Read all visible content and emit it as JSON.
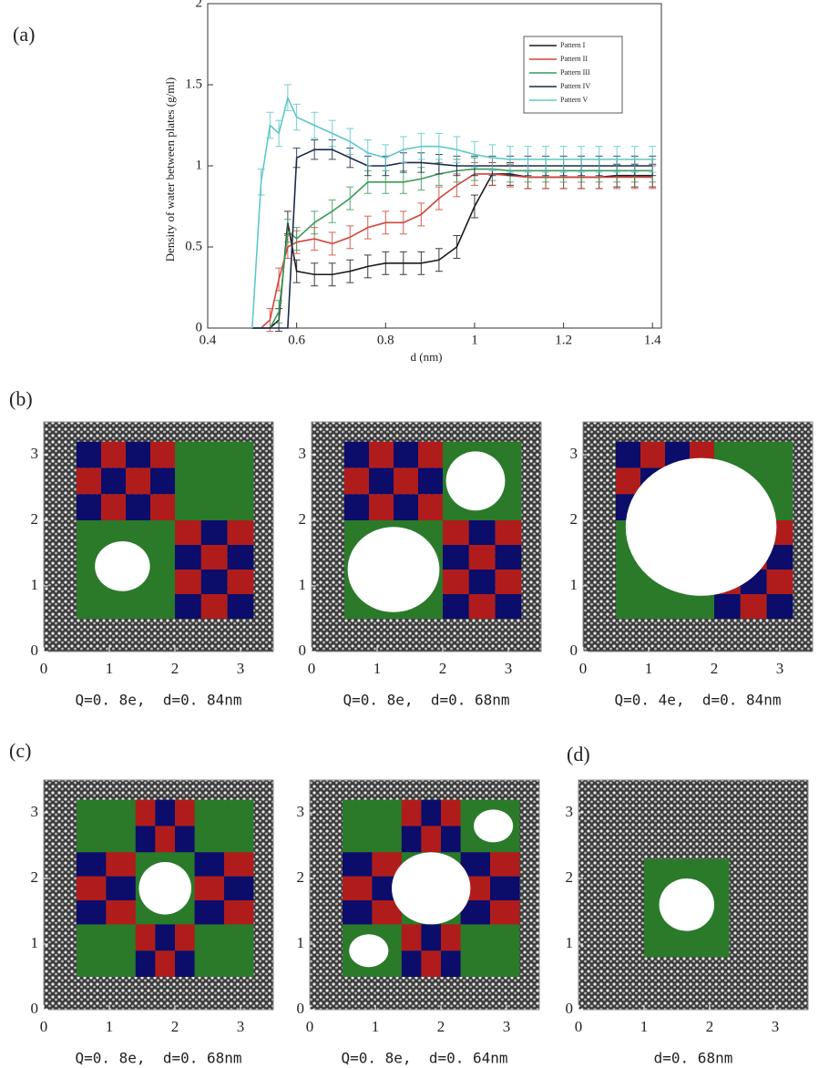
{
  "chart_data": {
    "type": "line",
    "panel_label": "(a)",
    "x_label": "d (nm)",
    "y_label": "Density of water between plates (g/ml)",
    "x": [
      0.5,
      0.52,
      0.54,
      0.56,
      0.58,
      0.6,
      0.64,
      0.68,
      0.72,
      0.76,
      0.8,
      0.84,
      0.88,
      0.92,
      0.96,
      1.0,
      1.04,
      1.08,
      1.12,
      1.16,
      1.2,
      1.24,
      1.28,
      1.32,
      1.36,
      1.4
    ],
    "xlim": [
      0.4,
      1.42
    ],
    "ylim": [
      0,
      2
    ],
    "xticks": [
      0.4,
      0.6,
      0.8,
      1,
      1.2,
      1.4
    ],
    "yticks": [
      0,
      0.5,
      1,
      1.5,
      2
    ],
    "legend": "upper right",
    "series": [
      {
        "name": "Pattern I",
        "color": "#1a1a1a",
        "error": 0.07,
        "values": [
          0,
          0,
          0,
          0.05,
          0.65,
          0.35,
          0.33,
          0.33,
          0.35,
          0.38,
          0.4,
          0.4,
          0.4,
          0.42,
          0.5,
          0.75,
          0.95,
          0.95,
          0.93,
          0.93,
          0.93,
          0.93,
          0.93,
          0.94,
          0.94,
          0.94
        ]
      },
      {
        "name": "Pattern II",
        "color": "#d0453a",
        "error": 0.07,
        "values": [
          0,
          0,
          0.05,
          0.3,
          0.5,
          0.53,
          0.55,
          0.52,
          0.56,
          0.62,
          0.65,
          0.65,
          0.7,
          0.8,
          0.88,
          0.95,
          0.95,
          0.94,
          0.93,
          0.93,
          0.93,
          0.93,
          0.93,
          0.93,
          0.93,
          0.93
        ]
      },
      {
        "name": "Pattern III",
        "color": "#3a9a5a",
        "error": 0.07,
        "values": [
          0,
          0,
          0,
          0.1,
          0.6,
          0.55,
          0.65,
          0.72,
          0.8,
          0.9,
          0.9,
          0.9,
          0.92,
          0.95,
          0.97,
          0.98,
          0.98,
          0.97,
          0.97,
          0.97,
          0.97,
          0.97,
          0.97,
          0.97,
          0.97,
          0.97
        ]
      },
      {
        "name": "Pattern IV",
        "color": "#1b2a4a",
        "error": 0.06,
        "values": [
          0,
          0,
          0,
          0,
          0,
          1.05,
          1.1,
          1.1,
          1.05,
          1.0,
          1.0,
          1.02,
          1.02,
          1.01,
          1.0,
          1.0,
          1.0,
          1.0,
          1.0,
          1.0,
          1.0,
          1.0,
          1.0,
          1.0,
          1.0,
          1.0
        ]
      },
      {
        "name": "Pattern V",
        "color": "#5ec8c8",
        "error": 0.08,
        "values": [
          0,
          0.9,
          1.25,
          1.2,
          1.42,
          1.3,
          1.25,
          1.2,
          1.15,
          1.08,
          1.05,
          1.1,
          1.12,
          1.12,
          1.1,
          1.07,
          1.05,
          1.04,
          1.04,
          1.04,
          1.04,
          1.04,
          1.04,
          1.04,
          1.04,
          1.04
        ]
      }
    ]
  },
  "snapshots": [
    {
      "panel_label": "(b)",
      "caption": "Q=0. 8e,  d=0. 84nm",
      "xticks": [
        0,
        1,
        2,
        3
      ],
      "yticks": [
        0,
        1,
        2,
        3
      ]
    },
    {
      "caption": "Q=0. 8e,  d=0. 68nm",
      "xticks": [
        0,
        1,
        2,
        3
      ],
      "yticks": [
        0,
        1,
        2,
        3
      ]
    },
    {
      "caption": "Q=0. 4e,  d=0. 84nm",
      "xticks": [
        0,
        1,
        2,
        3
      ],
      "yticks": [
        0,
        1,
        2,
        3
      ]
    },
    {
      "panel_label": "(c)",
      "caption": "Q=0. 8e,  d=0. 68nm",
      "xticks": [
        0,
        1,
        2,
        3
      ],
      "yticks": [
        0,
        1,
        2,
        3
      ]
    },
    {
      "caption": "Q=0. 8e,  d=0. 64nm",
      "xticks": [
        0,
        1,
        2,
        3
      ],
      "yticks": [
        0,
        1,
        2,
        3
      ]
    },
    {
      "panel_label": "(d)",
      "caption": "d=0. 68nm",
      "xticks": [
        0,
        1,
        2,
        3
      ],
      "yticks": [
        0,
        1,
        2,
        3
      ]
    }
  ]
}
